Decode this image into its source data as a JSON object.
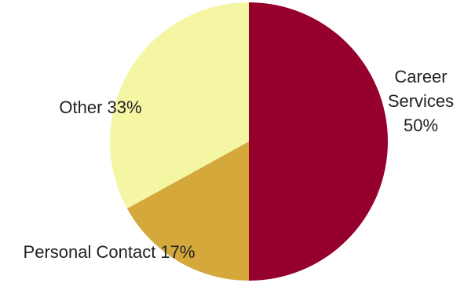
{
  "chart_data": {
    "type": "pie",
    "title": "",
    "start": "12 o'clock",
    "direction": "clockwise",
    "legend": "none",
    "slices": [
      {
        "label_lines": [
          "Career",
          "Services",
          "50%"
        ],
        "value": 50,
        "color": "#96002D"
      },
      {
        "label_lines": [
          "Personal Contact 17%"
        ],
        "value": 17,
        "color": "#D4A83A"
      },
      {
        "label_lines": [
          "Other 33%"
        ],
        "value": 33,
        "color": "#F4F6A4"
      }
    ]
  }
}
